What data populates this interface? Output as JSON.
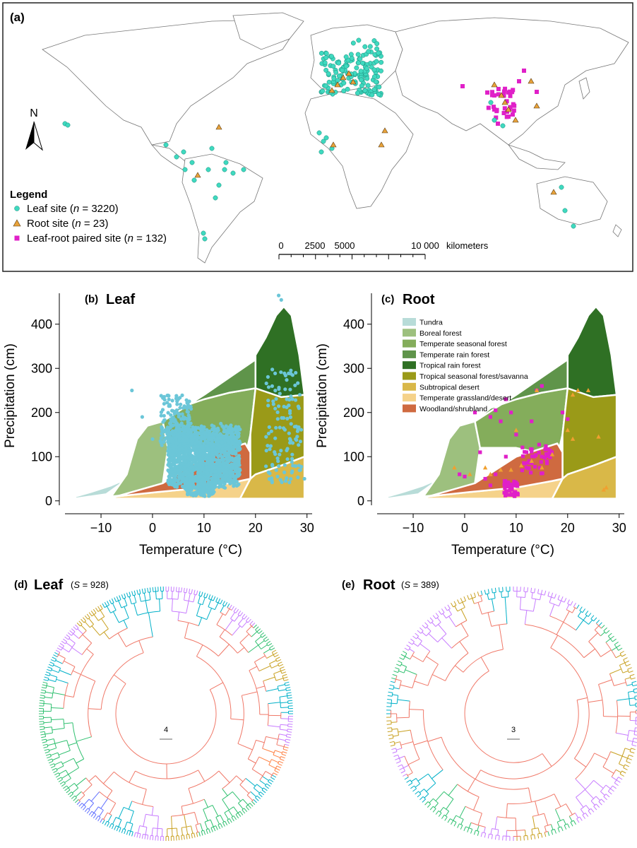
{
  "panel_a": {
    "label": "(a)",
    "north": "N",
    "legend_title": "Legend",
    "legend": [
      {
        "text_pre": "Leaf site (",
        "n_symbol": "n",
        "n_value": " = 3220)",
        "shape": "circle",
        "color": "#3fd9bf"
      },
      {
        "text_pre": "Root site (",
        "n_symbol": "n",
        "n_value": " = 23)",
        "shape": "triangle",
        "color": "#e8a23a"
      },
      {
        "text_pre": "Leaf-root paired site (",
        "n_symbol": "n",
        "n_value": " = 132)",
        "shape": "square",
        "color": "#e020c8"
      }
    ],
    "scalebar": {
      "ticks": [
        "0",
        "2500",
        "5000",
        "10 000"
      ],
      "unit": "kilometers"
    }
  },
  "panel_b": {
    "label": "(b)",
    "title": "Leaf",
    "point_color": "#6bc6d8"
  },
  "panel_c": {
    "label": "(c)",
    "title": "Root",
    "point_color_square": "#e020c8",
    "point_color_triangle": "#f0a030"
  },
  "biome_chart": {
    "ylabel": "Precipitation (cm)",
    "xlabel": "Temperature (°C)",
    "x_ticks": [
      "−10",
      "0",
      "10",
      "20",
      "30"
    ],
    "y_ticks": [
      "0",
      "100",
      "200",
      "300",
      "400"
    ],
    "xlim": [
      -17,
      31
    ],
    "ylim": [
      -10,
      470
    ]
  },
  "biomes": [
    {
      "name": "Tundra",
      "color": "#b8dcd8"
    },
    {
      "name": "Boreal forest",
      "color": "#9dc07e"
    },
    {
      "name": "Temperate seasonal forest",
      "color": "#84ad5b"
    },
    {
      "name": "Temperate rain forest",
      "color": "#5f944a"
    },
    {
      "name": "Tropical rain forest",
      "color": "#2f7024"
    },
    {
      "name": "Tropical seasonal forest/savanna",
      "color": "#9a9a18"
    },
    {
      "name": "Subtropical desert",
      "color": "#d9b848"
    },
    {
      "name": "Temperate grassland/desert",
      "color": "#f5d28a"
    },
    {
      "name": "Woodland/shrubland",
      "color": "#cf6a40"
    }
  ],
  "panel_d": {
    "label": "(d)",
    "title": "Leaf",
    "s_pre": "(",
    "s_symbol": "S",
    "s_value": " = 928)",
    "scale": "4"
  },
  "panel_e": {
    "label": "(e)",
    "title": "Root",
    "s_pre": "(",
    "s_symbol": "S",
    "s_value": " = 389)",
    "scale": "3"
  },
  "tree_colors": [
    "#f07868",
    "#c77cff",
    "#00b0c8",
    "#30c070",
    "#c8a020",
    "#ff7f40",
    "#7fb020",
    "#ff66b0",
    "#6070ff"
  ]
}
